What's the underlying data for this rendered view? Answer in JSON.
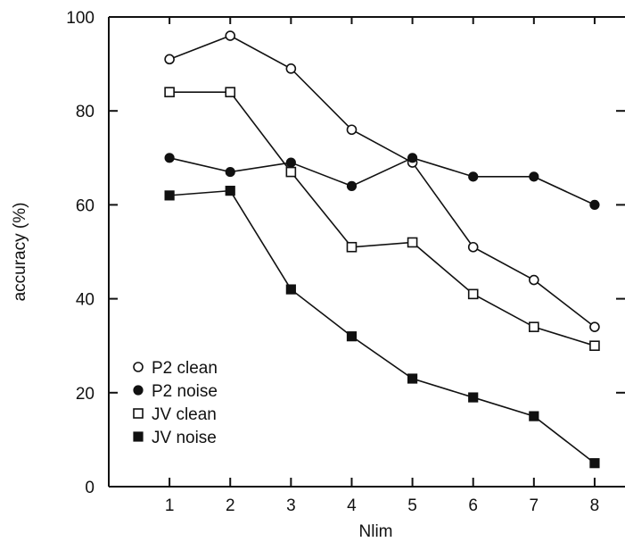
{
  "chart_data": {
    "type": "line",
    "title": "",
    "xlabel": "Nlim",
    "ylabel": "accuracy (%)",
    "x": [
      1,
      2,
      3,
      4,
      5,
      6,
      7,
      8
    ],
    "xlim": [
      0,
      8.5
    ],
    "ylim": [
      0,
      100
    ],
    "x_ticks": [
      "1",
      "2",
      "3",
      "4",
      "5",
      "6",
      "7",
      "8"
    ],
    "y_ticks": [
      "0",
      "20",
      "40",
      "60",
      "80",
      "100"
    ],
    "grid": false,
    "legend_position": "bottom-left",
    "series": [
      {
        "name": "P2 clean",
        "marker": "open-circle",
        "values": [
          91,
          96,
          89,
          76,
          69,
          51,
          44,
          34
        ]
      },
      {
        "name": "P2 noise",
        "marker": "filled-circle",
        "values": [
          70,
          67,
          69,
          64,
          70,
          66,
          66,
          60
        ]
      },
      {
        "name": "JV clean",
        "marker": "open-square",
        "values": [
          84,
          84,
          67,
          51,
          52,
          41,
          34,
          30
        ]
      },
      {
        "name": "JV noise",
        "marker": "filled-square",
        "values": [
          62,
          63,
          42,
          32,
          23,
          19,
          15,
          5
        ]
      }
    ]
  }
}
